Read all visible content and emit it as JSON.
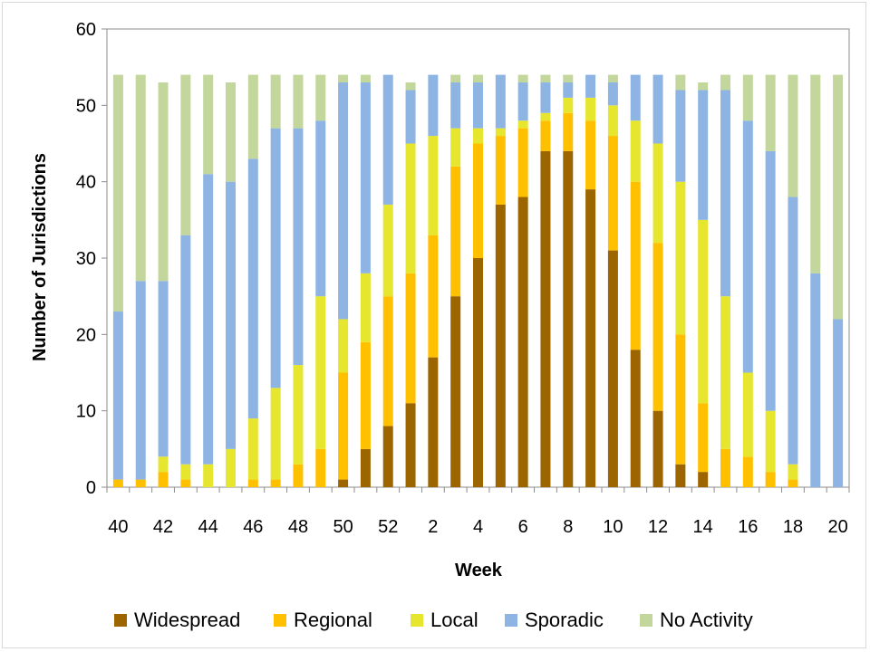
{
  "chart_data": {
    "type": "bar",
    "stacked": true,
    "xlabel": "Week",
    "ylabel": "Number of Jurisdictions",
    "ylim": [
      0,
      60
    ],
    "yticks": [
      0,
      10,
      20,
      30,
      40,
      50,
      60
    ],
    "grid": false,
    "legend_position": "bottom",
    "categories": [
      "40",
      "41",
      "42",
      "43",
      "44",
      "45",
      "46",
      "47",
      "48",
      "49",
      "50",
      "51",
      "52",
      "1",
      "2",
      "3",
      "4",
      "5",
      "6",
      "7",
      "8",
      "9",
      "10",
      "11",
      "12",
      "13",
      "14",
      "15",
      "16",
      "17",
      "18",
      "19",
      "20"
    ],
    "xtick_labels": [
      "40",
      "42",
      "44",
      "46",
      "48",
      "50",
      "52",
      "2",
      "4",
      "6",
      "8",
      "10",
      "12",
      "14",
      "16",
      "18",
      "20"
    ],
    "series": [
      {
        "name": "Widespread",
        "color": "#9c6500",
        "values": [
          0,
          0,
          0,
          0,
          0,
          0,
          0,
          0,
          0,
          0,
          1,
          5,
          8,
          11,
          17,
          25,
          30,
          37,
          38,
          44,
          44,
          39,
          31,
          18,
          10,
          3,
          2,
          0,
          0,
          0,
          0,
          0,
          0
        ]
      },
      {
        "name": "Regional",
        "color": "#ffc000",
        "values": [
          1,
          1,
          2,
          1,
          0,
          0,
          1,
          1,
          3,
          5,
          14,
          14,
          17,
          17,
          16,
          17,
          15,
          9,
          9,
          4,
          5,
          9,
          15,
          22,
          22,
          17,
          9,
          5,
          4,
          2,
          1,
          0,
          0
        ]
      },
      {
        "name": "Local",
        "color": "#e6e62e",
        "values": [
          0,
          0,
          2,
          2,
          3,
          5,
          8,
          12,
          13,
          20,
          7,
          9,
          12,
          17,
          13,
          5,
          2,
          1,
          1,
          1,
          2,
          3,
          4,
          8,
          13,
          20,
          24,
          20,
          11,
          8,
          2,
          0,
          0
        ]
      },
      {
        "name": "Sporadic",
        "color": "#8eb4e3",
        "values": [
          22,
          26,
          23,
          30,
          38,
          35,
          34,
          34,
          31,
          23,
          31,
          25,
          17,
          7,
          8,
          6,
          6,
          7,
          5,
          4,
          2,
          3,
          3,
          6,
          9,
          12,
          17,
          27,
          33,
          34,
          35,
          28,
          22
        ]
      },
      {
        "name": "No Activity",
        "color": "#c3d69b",
        "values": [
          31,
          27,
          26,
          21,
          13,
          13,
          11,
          7,
          7,
          6,
          1,
          1,
          0,
          1,
          0,
          1,
          1,
          0,
          1,
          1,
          1,
          0,
          1,
          0,
          0,
          2,
          1,
          2,
          6,
          10,
          16,
          26,
          32
        ]
      }
    ]
  }
}
